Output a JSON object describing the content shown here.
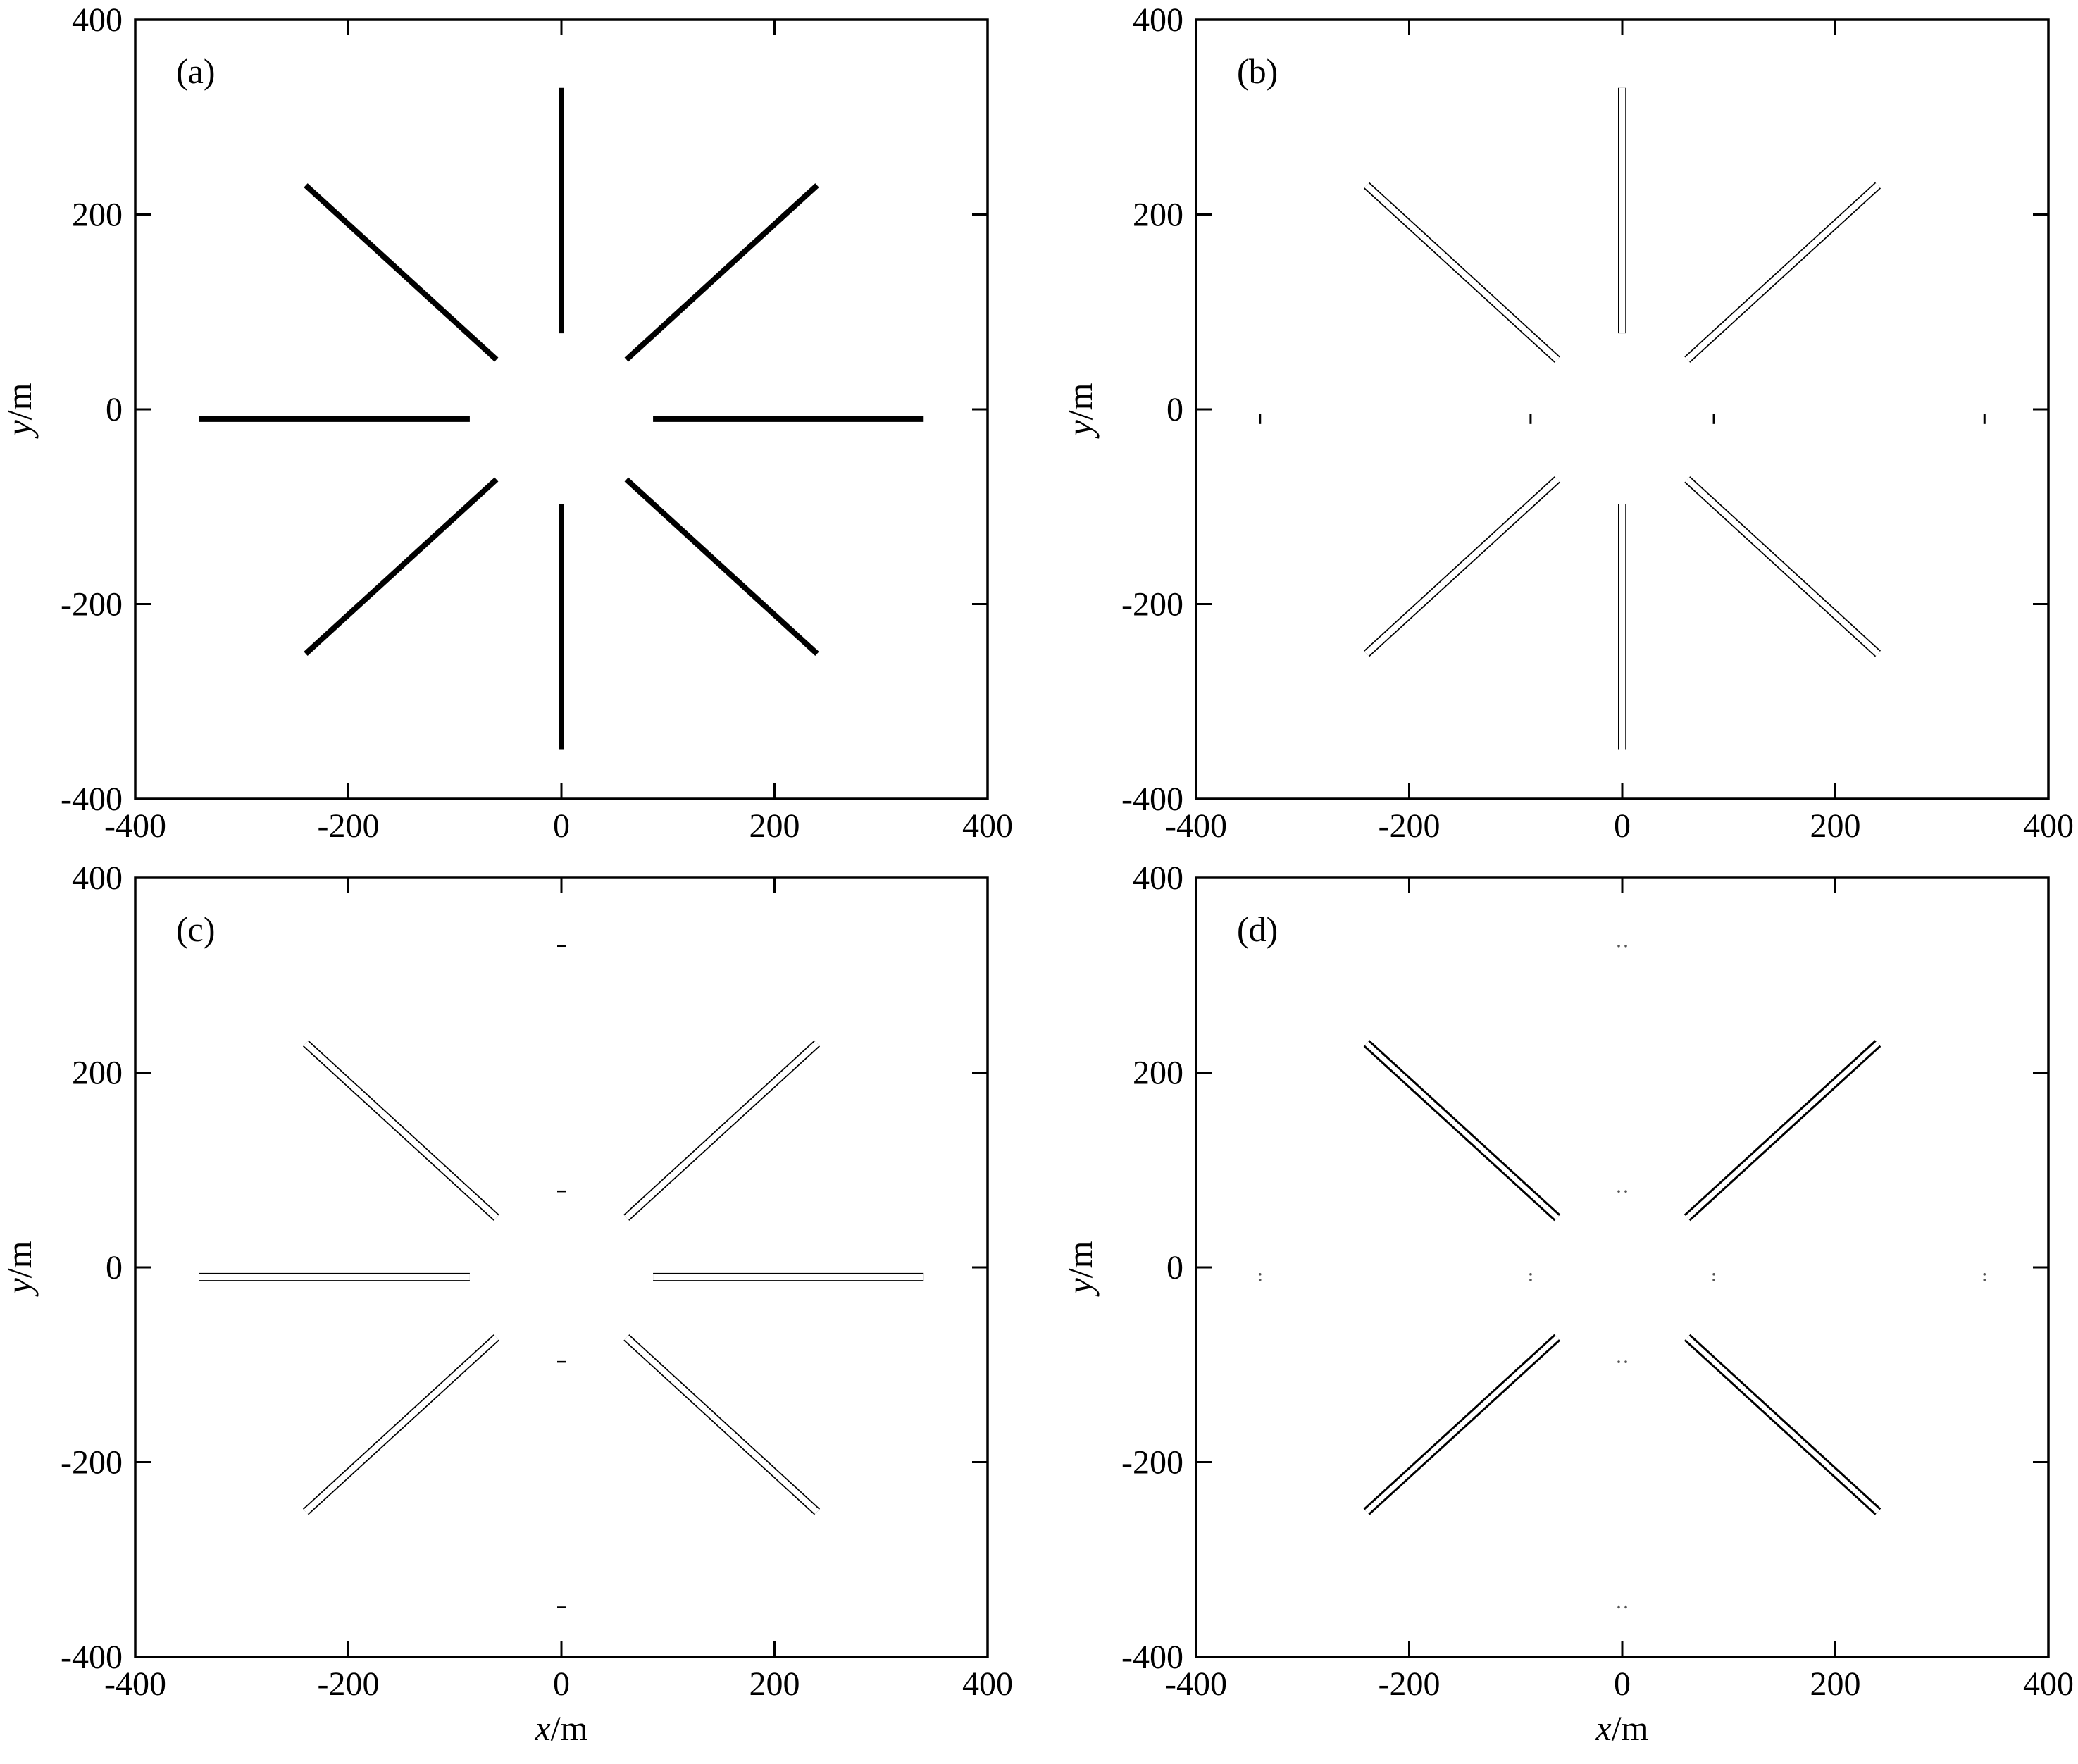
{
  "chart_data": [
    {
      "type": "line",
      "panel_label": "(a)",
      "xlim": [
        -400,
        400
      ],
      "ylim": [
        -400,
        400
      ],
      "xticks": [
        "-400",
        "-200",
        "0",
        "200",
        "400"
      ],
      "yticks": [
        "400",
        "200",
        "0",
        "-200",
        "-400"
      ],
      "ylabel_var": "y",
      "ylabel_unit": "/m",
      "xlabel_var": "",
      "xlabel_unit": "",
      "grid": false,
      "render": "solid",
      "segments": [
        {
          "x": [
            0,
            0
          ],
          "y": [
            78,
            330
          ]
        },
        {
          "x": [
            0,
            0
          ],
          "y": [
            -97,
            -349
          ]
        },
        {
          "x": [
            -340,
            -86
          ],
          "y": [
            -10,
            -10
          ]
        },
        {
          "x": [
            86,
            340
          ],
          "y": [
            -10,
            -10
          ]
        },
        {
          "x": [
            -240,
            -61
          ],
          "y": [
            230,
            51
          ]
        },
        {
          "x": [
            61,
            240
          ],
          "y": [
            51,
            230
          ]
        },
        {
          "x": [
            -61,
            -240
          ],
          "y": [
            -72,
            -251
          ]
        },
        {
          "x": [
            61,
            240
          ],
          "y": [
            -72,
            -251
          ]
        }
      ],
      "marks": []
    },
    {
      "type": "line",
      "panel_label": "(b)",
      "xlim": [
        -400,
        400
      ],
      "ylim": [
        -400,
        400
      ],
      "xticks": [
        "-400",
        "-200",
        "0",
        "200",
        "400"
      ],
      "yticks": [
        "400",
        "200",
        "0",
        "-200",
        "-400"
      ],
      "ylabel_var": "y",
      "ylabel_unit": "/m",
      "xlabel_var": "",
      "xlabel_unit": "",
      "grid": false,
      "render": "outline",
      "segments": [
        {
          "x": [
            0,
            0
          ],
          "y": [
            78,
            330
          ]
        },
        {
          "x": [
            0,
            0
          ],
          "y": [
            -97,
            -349
          ]
        },
        {
          "x": [
            -240,
            -61
          ],
          "y": [
            230,
            51
          ]
        },
        {
          "x": [
            61,
            240
          ],
          "y": [
            51,
            230
          ]
        },
        {
          "x": [
            -61,
            -240
          ],
          "y": [
            -72,
            -251
          ]
        },
        {
          "x": [
            61,
            240
          ],
          "y": [
            -72,
            -251
          ]
        }
      ],
      "marks": [
        {
          "x": -340,
          "y": -10,
          "dir": "v"
        },
        {
          "x": -86,
          "y": -10,
          "dir": "v"
        },
        {
          "x": 86,
          "y": -10,
          "dir": "v"
        },
        {
          "x": 340,
          "y": -10,
          "dir": "v"
        }
      ]
    },
    {
      "type": "line",
      "panel_label": "(c)",
      "xlim": [
        -400,
        400
      ],
      "ylim": [
        -400,
        400
      ],
      "xticks": [
        "-400",
        "-200",
        "0",
        "200",
        "400"
      ],
      "yticks": [
        "400",
        "200",
        "0",
        "-200",
        "-400"
      ],
      "ylabel_var": "y",
      "ylabel_unit": "/m",
      "xlabel_var": "x",
      "xlabel_unit": "/m",
      "grid": false,
      "render": "outline",
      "segments": [
        {
          "x": [
            -340,
            -86
          ],
          "y": [
            -10,
            -10
          ]
        },
        {
          "x": [
            86,
            340
          ],
          "y": [
            -10,
            -10
          ]
        },
        {
          "x": [
            -240,
            -61
          ],
          "y": [
            230,
            51
          ]
        },
        {
          "x": [
            61,
            240
          ],
          "y": [
            51,
            230
          ]
        },
        {
          "x": [
            -61,
            -240
          ],
          "y": [
            -72,
            -251
          ]
        },
        {
          "x": [
            61,
            240
          ],
          "y": [
            -72,
            -251
          ]
        }
      ],
      "marks": [
        {
          "x": 0,
          "y": 330,
          "dir": "h"
        },
        {
          "x": 0,
          "y": 78,
          "dir": "h"
        },
        {
          "x": 0,
          "y": -97,
          "dir": "h"
        },
        {
          "x": 0,
          "y": -349,
          "dir": "h"
        }
      ]
    },
    {
      "type": "line",
      "panel_label": "(d)",
      "xlim": [
        -400,
        400
      ],
      "ylim": [
        -400,
        400
      ],
      "xticks": [
        "-400",
        "-200",
        "0",
        "200",
        "400"
      ],
      "yticks": [
        "400",
        "200",
        "0",
        "-200",
        "-400"
      ],
      "ylabel_var": "y",
      "ylabel_unit": "/m",
      "xlabel_var": "x",
      "xlabel_unit": "/m",
      "grid": false,
      "render": "outline-bold",
      "segments": [
        {
          "x": [
            -240,
            -61
          ],
          "y": [
            230,
            51
          ]
        },
        {
          "x": [
            61,
            240
          ],
          "y": [
            51,
            230
          ]
        },
        {
          "x": [
            -61,
            -240
          ],
          "y": [
            -72,
            -251
          ]
        },
        {
          "x": [
            61,
            240
          ],
          "y": [
            -72,
            -251
          ]
        }
      ],
      "marks": [
        {
          "x": 0,
          "y": 330,
          "dir": "dots-h"
        },
        {
          "x": 0,
          "y": 78,
          "dir": "dots-h"
        },
        {
          "x": 0,
          "y": -97,
          "dir": "dots-h"
        },
        {
          "x": 0,
          "y": -349,
          "dir": "dots-h"
        },
        {
          "x": -340,
          "y": -10,
          "dir": "dots-v"
        },
        {
          "x": -86,
          "y": -10,
          "dir": "dots-v"
        },
        {
          "x": 86,
          "y": -10,
          "dir": "dots-v"
        },
        {
          "x": 340,
          "y": -10,
          "dir": "dots-v"
        }
      ]
    }
  ]
}
